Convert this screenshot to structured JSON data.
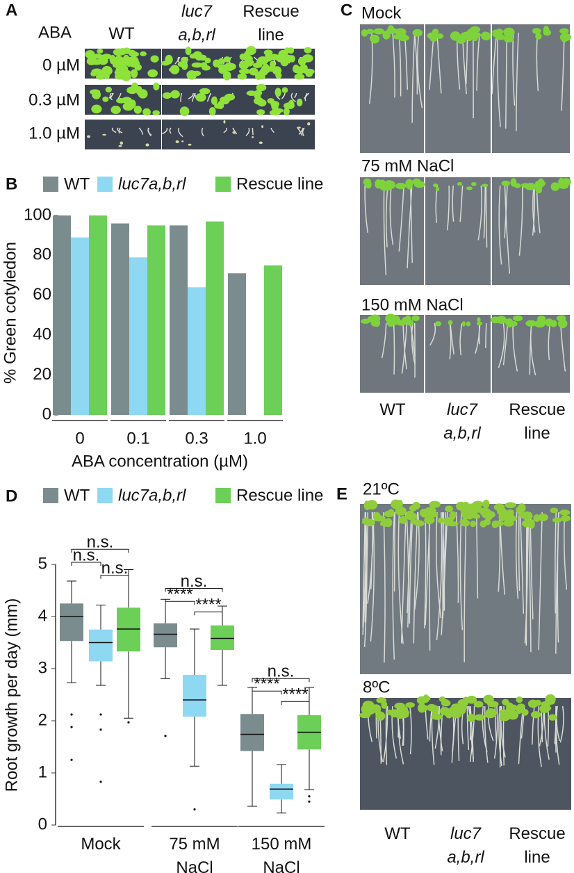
{
  "panel_labels": [
    "A",
    "B",
    "C",
    "D",
    "E"
  ],
  "panel_a": {
    "row_header": "ABA",
    "columns": [
      "WT",
      "luc7 a,b,rl",
      "Rescue line"
    ],
    "rows": [
      "0 µM",
      "0.3 µM",
      "1.0 µM"
    ]
  },
  "panel_c": {
    "conditions": [
      "Mock",
      "75 mM NaCl",
      "150 mM NaCl"
    ],
    "columns": [
      "WT",
      "luc7 a,b,rl",
      "Rescue line"
    ]
  },
  "panel_e": {
    "conditions": [
      "21ºC",
      "8ºC"
    ],
    "columns": [
      "WT",
      "luc7 a,b,rl",
      "Rescue line"
    ]
  },
  "chart_data": [
    {
      "type": "bar",
      "xlabel": "ABA concentration (µM)",
      "ylabel": "% Green cotyledon",
      "categories": [
        "0",
        "0.1",
        "0.3",
        "1.0"
      ],
      "series": [
        {
          "name": "WT",
          "color": "#7b8c8e",
          "values": [
            100,
            96,
            95,
            71
          ]
        },
        {
          "name": "luc7a,b,rl",
          "color": "#8fd8f2",
          "values": [
            89,
            79,
            64,
            0
          ]
        },
        {
          "name": "Rescue line",
          "color": "#6ccf58",
          "values": [
            100,
            95,
            97,
            75
          ]
        }
      ],
      "ylim": [
        0,
        100
      ],
      "yticks": [
        0,
        20,
        40,
        60,
        80,
        100
      ]
    },
    {
      "type": "box",
      "ylabel": "Root growth per day (mm)",
      "categories": [
        "Mock",
        "75 mM NaCl",
        "150 mM NaCl"
      ],
      "series": [
        {
          "name": "WT",
          "color": "#7b8c8e",
          "min": [
            2.73,
            2.81,
            0.36
          ],
          "q1": [
            3.53,
            3.41,
            1.42
          ],
          "median": [
            4.0,
            3.66,
            1.74
          ],
          "q3": [
            4.25,
            3.87,
            2.13
          ],
          "max": [
            4.68,
            4.33,
            2.64
          ],
          "outliers": [
            [
              2.12,
              1.88,
              1.25
            ],
            [
              1.71
            ],
            []
          ]
        },
        {
          "name": "luc7a,b,rl",
          "color": "#8fd8f2",
          "min": [
            2.68,
            1.13,
            0.23
          ],
          "q1": [
            3.14,
            2.08,
            0.49
          ],
          "median": [
            3.5,
            2.4,
            0.69
          ],
          "q3": [
            3.75,
            2.88,
            0.79
          ],
          "max": [
            4.22,
            3.76,
            1.16
          ],
          "outliers": [
            [
              2.12,
              1.83,
              0.83
            ],
            [
              0.3
            ],
            []
          ]
        },
        {
          "name": "Rescue line",
          "color": "#6ccf58",
          "min": [
            2.05,
            2.68,
            0.68
          ],
          "q1": [
            3.33,
            3.36,
            1.45
          ],
          "median": [
            3.76,
            3.58,
            1.78
          ],
          "q3": [
            4.17,
            3.83,
            2.11
          ],
          "max": [
            4.9,
            4.2,
            2.64
          ],
          "outliers": [
            [
              1.97
            ],
            [],
            [
              0.55,
              0.45
            ]
          ]
        }
      ],
      "annotations": [
        "n.s.",
        "n.s.",
        "n.s.",
        "n.s.",
        "****",
        "****",
        "n.s.",
        "****",
        "****"
      ],
      "ylim": [
        0,
        5
      ],
      "yticks": [
        0,
        1,
        2,
        3,
        4,
        5
      ]
    }
  ]
}
